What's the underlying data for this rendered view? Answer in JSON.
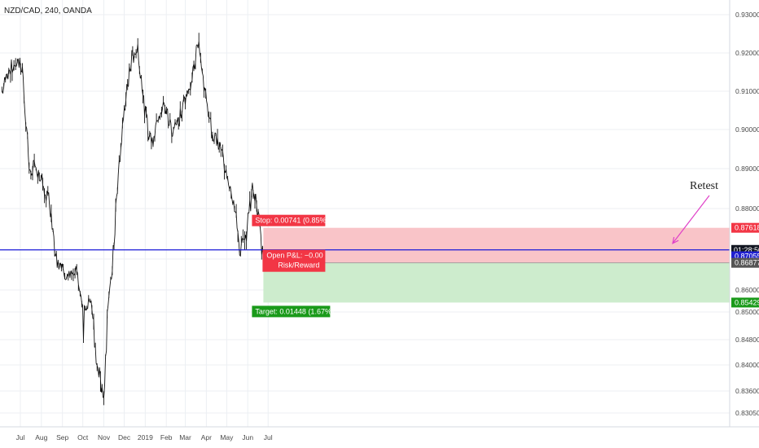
{
  "header": {
    "symbol": "NZD/CAD, 240, OANDA"
  },
  "colors": {
    "candle": "#131313",
    "grid": "#eceff3",
    "hline": "#1a1ad8",
    "stop": "#f23645",
    "stop_zone": "#f9c4c8",
    "target": "#1a9a1a",
    "target_zone": "#cdeccd",
    "arrow": "#e040c8",
    "price_tag": "#131722",
    "open_tag": "#2020d0",
    "entry_tag": "#555555"
  },
  "chart_data": {
    "type": "line",
    "x_ticks": [
      "Jul",
      "Aug",
      "Sep",
      "Oct",
      "Nov",
      "Dec",
      "2019",
      "Feb",
      "Mar",
      "Apr",
      "May",
      "Jun",
      "Jul"
    ],
    "y_ticks": [
      "0.93000",
      "0.92000",
      "0.91000",
      "0.90000",
      "0.89000",
      "0.88000",
      "0.87000",
      "0.86000",
      "0.85000",
      "0.84800",
      "0.84000",
      "0.83600",
      "0.83050"
    ],
    "y_tick_values": [
      0.93,
      0.92,
      0.91,
      0.9,
      0.89,
      0.88,
      0.87,
      0.86,
      0.85,
      0.848,
      0.84,
      0.836,
      0.8305
    ],
    "ylim": [
      0.8295,
      0.9318
    ],
    "x": [
      "2018-06-04",
      "2018-06-14",
      "2018-06-24",
      "2018-07-04",
      "2018-07-14",
      "2018-07-24",
      "2018-08-03",
      "2018-08-13",
      "2018-08-23",
      "2018-09-02",
      "2018-09-12",
      "2018-09-22",
      "2018-10-02",
      "2018-10-12",
      "2018-10-22",
      "2018-11-01",
      "2018-11-11",
      "2018-11-21",
      "2018-12-01",
      "2018-12-11",
      "2018-12-21",
      "2018-12-31",
      "2019-01-10",
      "2019-01-20",
      "2019-01-30",
      "2019-02-09",
      "2019-02-19",
      "2019-03-01",
      "2019-03-11",
      "2019-03-21",
      "2019-03-31",
      "2019-04-10",
      "2019-04-20",
      "2019-04-30",
      "2019-05-10",
      "2019-05-20",
      "2019-05-30",
      "2019-06-09",
      "2019-06-19",
      "2019-06-24"
    ],
    "series": [
      {
        "values": [
          0.91,
          0.915,
          0.918,
          0.916,
          0.89,
          0.89,
          0.886,
          0.882,
          0.87,
          0.866,
          0.864,
          0.866,
          0.85,
          0.856,
          0.84,
          0.836,
          0.862,
          0.885,
          0.905,
          0.918,
          0.922,
          0.905,
          0.896,
          0.904,
          0.906,
          0.9,
          0.902,
          0.908,
          0.914,
          0.924,
          0.908,
          0.898,
          0.896,
          0.89,
          0.883,
          0.872,
          0.874,
          0.886,
          0.876,
          0.869
        ]
      }
    ],
    "horizontal_lines": [
      {
        "value": 0.87181,
        "label": "01:28:50"
      }
    ],
    "price_tags": [
      {
        "value": 0.87618,
        "label": "0.87618"
      },
      {
        "value": 0.87055,
        "label": "0.87055"
      },
      {
        "value": 0.86877,
        "label": "0.86877"
      },
      {
        "value": 0.85429,
        "label": "0.85429"
      }
    ],
    "position": {
      "type": "short",
      "entry": 0.86877,
      "stop": 0.87618,
      "target": 0.85429,
      "start": "2019-06-24",
      "stop_label": "Stop: 0.00741 (0.85%",
      "target_label": "Target: 0.01448 (1.67%)",
      "pnl_label": "Open P&L: −0.00",
      "rr_label": "Risk/Reward"
    },
    "annotations": [
      {
        "text": "Retest"
      }
    ]
  }
}
